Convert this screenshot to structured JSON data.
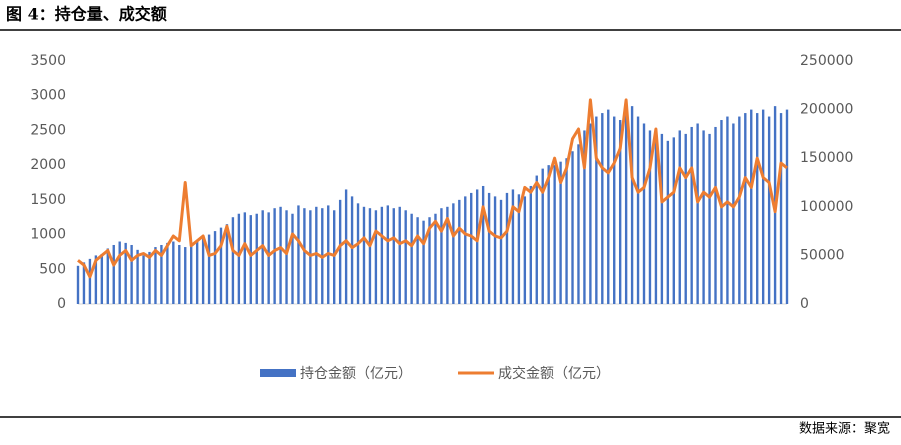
{
  "chart_data": {
    "type": "bar-line",
    "title": "图 4：持仓量、成交额",
    "source": "数据来源：聚宽",
    "ylim": [
      0,
      3500
    ],
    "yticks": [
      0,
      500,
      1000,
      1500,
      2000,
      2500,
      3000,
      3500
    ],
    "y2lim": [
      0,
      250000
    ],
    "y2ticks": [
      0,
      50000,
      100000,
      150000,
      200000,
      250000
    ],
    "series": [
      {
        "name": "持仓金额（亿元）",
        "color": "#4472c4",
        "kind": "bar",
        "values": [
          550,
          600,
          650,
          700,
          720,
          800,
          850,
          900,
          880,
          850,
          780,
          700,
          750,
          820,
          850,
          880,
          900,
          850,
          820,
          870,
          900,
          950,
          1000,
          1050,
          1100,
          1150,
          1250,
          1300,
          1320,
          1280,
          1300,
          1350,
          1320,
          1380,
          1400,
          1350,
          1300,
          1420,
          1380,
          1350,
          1400,
          1380,
          1420,
          1350,
          1500,
          1650,
          1550,
          1450,
          1400,
          1380,
          1350,
          1400,
          1420,
          1380,
          1400,
          1350,
          1300,
          1250,
          1200,
          1250,
          1300,
          1380,
          1400,
          1450,
          1500,
          1550,
          1600,
          1650,
          1700,
          1600,
          1550,
          1500,
          1600,
          1650,
          1580,
          1550,
          1700,
          1850,
          1950,
          2000,
          2000,
          2050,
          2100,
          2200,
          2300,
          2500,
          2600,
          2700,
          2750,
          2800,
          2700,
          2650,
          2800,
          2850,
          2700,
          2600,
          2500,
          2400,
          2450,
          2350,
          2400,
          2500,
          2450,
          2550,
          2600,
          2500,
          2450,
          2550,
          2650,
          2700,
          2600,
          2700,
          2750,
          2800,
          2750,
          2800,
          2700,
          2850,
          2750,
          2800
        ]
      },
      {
        "name": "成交金额（亿元）",
        "color": "#ed7d31",
        "kind": "line",
        "axis": "y2",
        "values": [
          45000,
          40000,
          28000,
          45000,
          50000,
          55000,
          40000,
          50000,
          55000,
          45000,
          50000,
          52000,
          48000,
          55000,
          50000,
          60000,
          70000,
          65000,
          125000,
          60000,
          65000,
          70000,
          50000,
          52000,
          60000,
          80000,
          55000,
          50000,
          62000,
          50000,
          55000,
          60000,
          50000,
          55000,
          58000,
          52000,
          72000,
          65000,
          55000,
          50000,
          52000,
          48000,
          52000,
          50000,
          60000,
          65000,
          58000,
          62000,
          68000,
          60000,
          75000,
          70000,
          65000,
          68000,
          62000,
          65000,
          60000,
          70000,
          62000,
          78000,
          85000,
          75000,
          88000,
          70000,
          78000,
          72000,
          70000,
          65000,
          100000,
          75000,
          70000,
          68000,
          75000,
          100000,
          95000,
          120000,
          115000,
          125000,
          115000,
          130000,
          150000,
          125000,
          140000,
          170000,
          180000,
          140000,
          210000,
          150000,
          140000,
          135000,
          145000,
          160000,
          210000,
          130000,
          115000,
          120000,
          140000,
          180000,
          105000,
          110000,
          115000,
          140000,
          130000,
          140000,
          105000,
          115000,
          110000,
          120000,
          100000,
          105000,
          100000,
          110000,
          130000,
          120000,
          150000,
          130000,
          125000,
          95000,
          145000,
          140000
        ]
      }
    ]
  }
}
